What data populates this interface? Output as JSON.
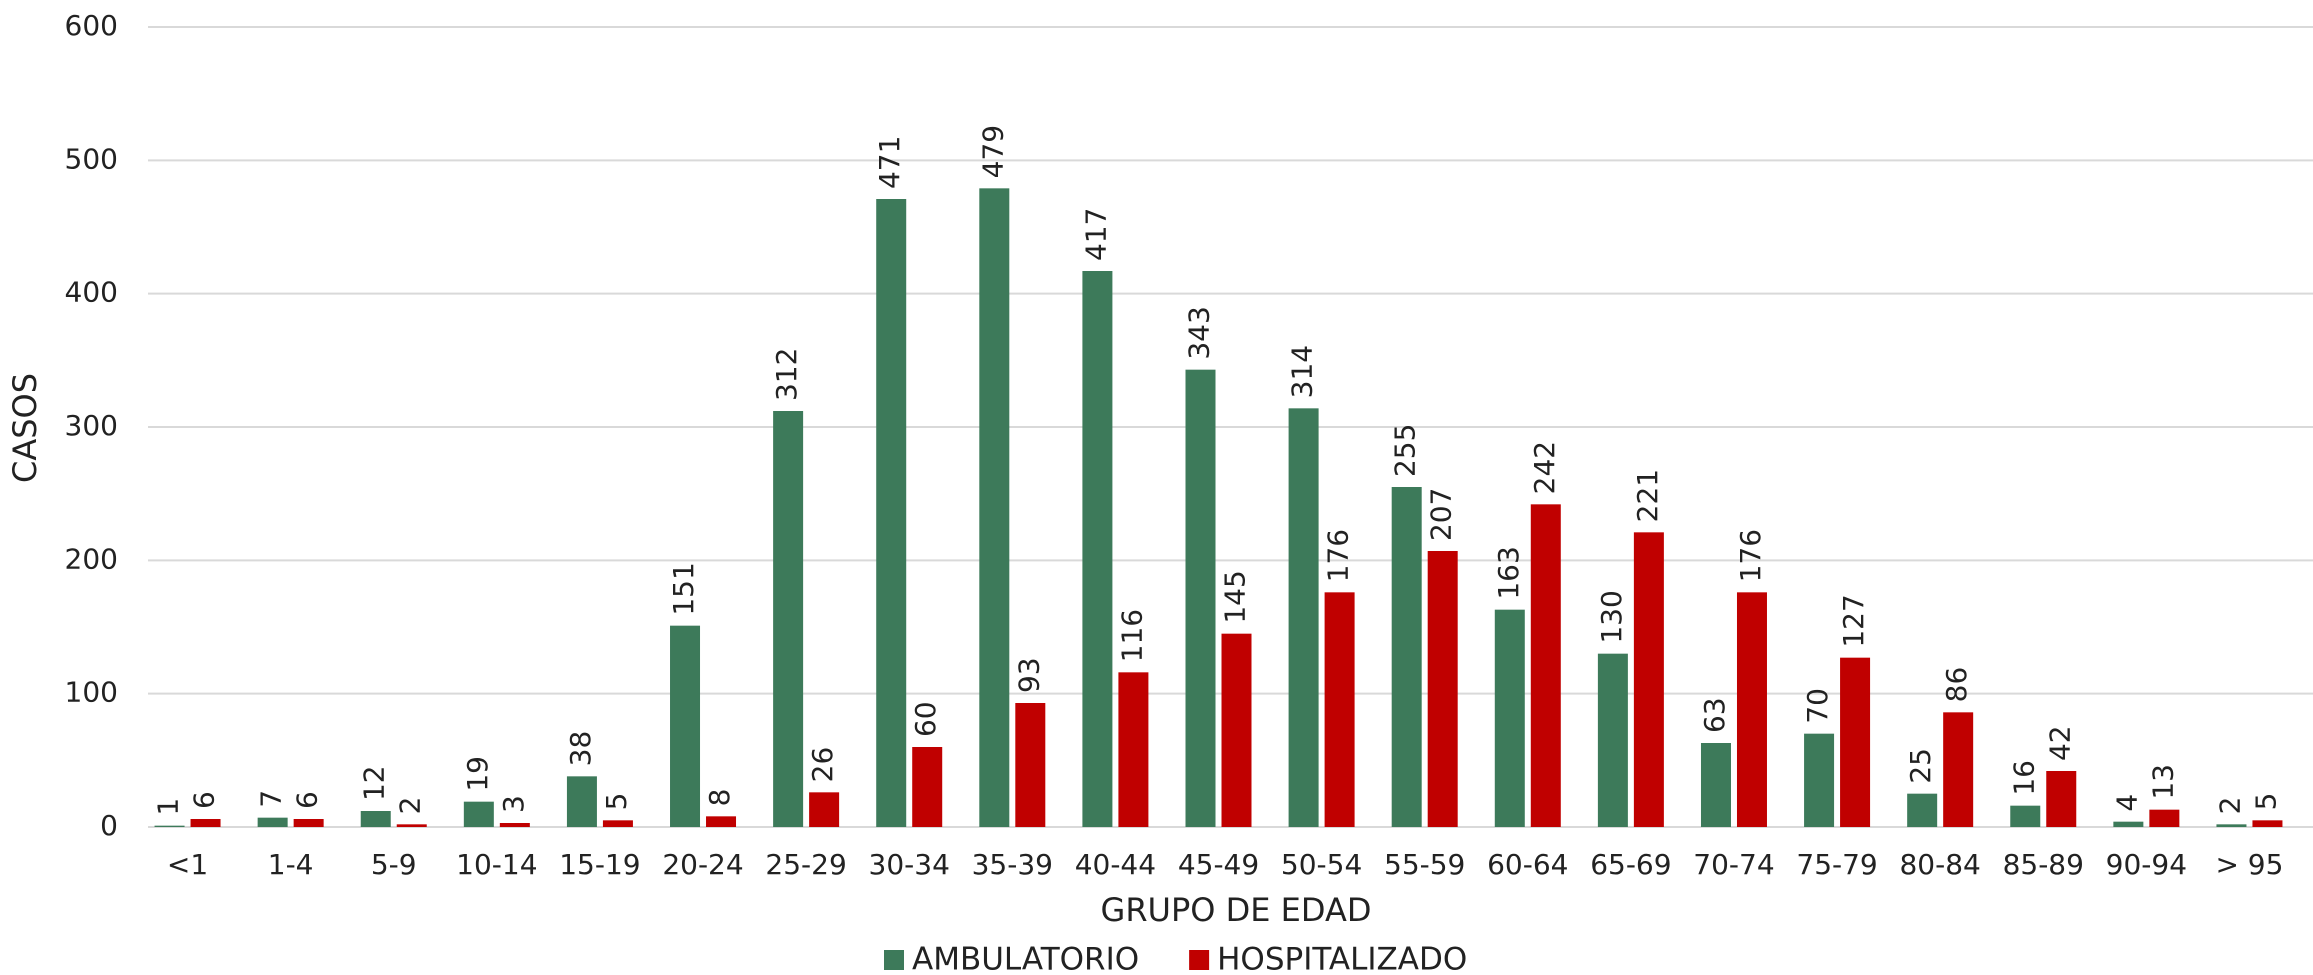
{
  "chart_data": {
    "type": "bar",
    "x_label": "GRUPO DE EDAD",
    "y_label": "CASOS",
    "categories": [
      "<1",
      "1-4",
      "5-9",
      "10-14",
      "15-19",
      "20-24",
      "25-29",
      "30-34",
      "35-39",
      "40-44",
      "45-49",
      "50-54",
      "55-59",
      "60-64",
      "65-69",
      "70-74",
      "75-79",
      "80-84",
      "85-89",
      "90-94",
      "> 95"
    ],
    "series": [
      {
        "name": "AMBULATORIO",
        "color": "#3d7a5a",
        "values": [
          1,
          7,
          12,
          19,
          38,
          151,
          312,
          471,
          479,
          417,
          343,
          314,
          255,
          163,
          130,
          63,
          70,
          25,
          16,
          4,
          2
        ]
      },
      {
        "name": "HOSPITALIZADO",
        "color": "#c00000",
        "values": [
          6,
          6,
          2,
          3,
          5,
          8,
          26,
          60,
          93,
          116,
          145,
          176,
          207,
          242,
          221,
          176,
          127,
          86,
          42,
          13,
          5
        ]
      }
    ],
    "ylim": [
      0,
      600
    ],
    "yticks": [
      0,
      100,
      200,
      300,
      400,
      500,
      600
    ],
    "grid": true,
    "legend": "bottom"
  }
}
